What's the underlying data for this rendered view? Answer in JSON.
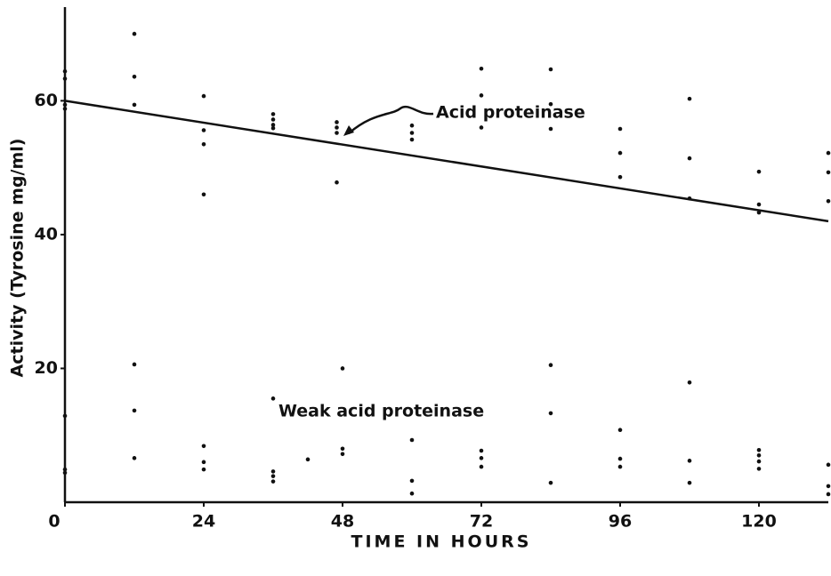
{
  "chart_data": {
    "type": "scatter",
    "xlabel": "TIME IN HOURS",
    "ylabel": "Activity (Tyrosine mg/ml)",
    "xlim": [
      0,
      132
    ],
    "ylim": [
      0,
      74
    ],
    "xticks": [
      0,
      24,
      48,
      72,
      96,
      120
    ],
    "yticks": [
      20,
      40,
      60
    ],
    "color": "#111111",
    "series": [
      {
        "x": [
          0,
          0,
          0,
          0,
          12,
          12,
          12,
          24,
          24,
          24,
          24,
          36,
          36,
          36,
          36,
          47,
          47,
          47,
          47,
          60,
          60,
          60,
          72,
          72,
          72,
          84,
          84,
          84,
          96,
          96,
          96,
          108,
          108,
          108,
          120,
          120,
          120,
          132,
          132,
          132
        ],
        "y": [
          64.4,
          63.3,
          59.4,
          58.8,
          70,
          63.6,
          59.4,
          60.7,
          55.6,
          53.5,
          46,
          58,
          57.2,
          56.4,
          55.9,
          56.8,
          56,
          55.2,
          47.8,
          56.3,
          55.2,
          54.2,
          64.8,
          60.8,
          56,
          64.7,
          59.5,
          55.8,
          55.8,
          52.2,
          48.6,
          60.3,
          51.4,
          45.4,
          49.4,
          44.5,
          43.3,
          52.2,
          49.3,
          45
        ]
      },
      {
        "x": [
          0,
          0,
          0,
          12,
          12,
          12,
          24,
          24,
          24,
          36,
          36,
          36,
          36,
          42,
          48,
          48,
          48,
          60,
          60,
          60,
          72,
          72,
          72,
          84,
          84,
          84,
          96,
          96,
          96,
          108,
          108,
          108,
          120,
          120,
          120,
          120,
          132,
          132,
          132
        ],
        "y": [
          12.9,
          4.9,
          4.4,
          20.6,
          13.7,
          6.6,
          8.4,
          6,
          4.9,
          15.5,
          4.6,
          3.9,
          3.1,
          6.4,
          20,
          8,
          7.2,
          9.3,
          3.2,
          1.3,
          7.7,
          6.6,
          5.3,
          20.5,
          13.3,
          2.9,
          10.8,
          6.5,
          5.3,
          17.9,
          6.2,
          2.9,
          7.8,
          7,
          6.1,
          5,
          5.6,
          2.4,
          1.2
        ]
      }
    ],
    "fit_line": {
      "x": [
        0,
        132
      ],
      "y": [
        60,
        42
      ]
    },
    "annotations": [
      "Acid proteinase",
      "Weak acid proteinase"
    ]
  }
}
